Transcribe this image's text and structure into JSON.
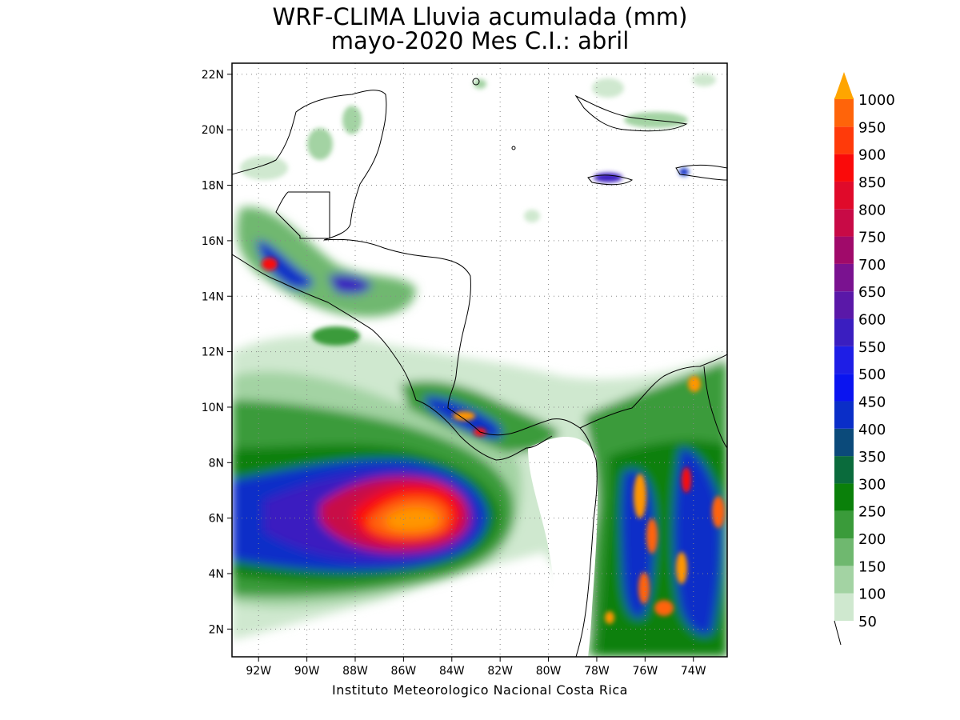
{
  "header": {
    "title_line1": "WRF-CLIMA Lluvia acumulada (mm)",
    "title_line2": "mayo-2020 Mes C.I.: abril"
  },
  "footer": {
    "credit": "Instituto Meteorologico Nacional Costa Rica"
  },
  "map": {
    "lon_range": [
      -93.1,
      -72.6
    ],
    "lat_range": [
      1.0,
      22.4
    ],
    "lon_ticks": [
      {
        "value": -92,
        "label": "92W"
      },
      {
        "value": -90,
        "label": "90W"
      },
      {
        "value": -88,
        "label": "88W"
      },
      {
        "value": -86,
        "label": "86W"
      },
      {
        "value": -84,
        "label": "84W"
      },
      {
        "value": -82,
        "label": "82W"
      },
      {
        "value": -80,
        "label": "80W"
      },
      {
        "value": -78,
        "label": "78W"
      },
      {
        "value": -76,
        "label": "76W"
      },
      {
        "value": -74,
        "label": "74W"
      }
    ],
    "lat_ticks": [
      {
        "value": 2,
        "label": "2N"
      },
      {
        "value": 4,
        "label": "4N"
      },
      {
        "value": 6,
        "label": "6N"
      },
      {
        "value": 8,
        "label": "8N"
      },
      {
        "value": 10,
        "label": "10N"
      },
      {
        "value": 12,
        "label": "12N"
      },
      {
        "value": 14,
        "label": "14N"
      },
      {
        "value": 16,
        "label": "16N"
      },
      {
        "value": 18,
        "label": "18N"
      },
      {
        "value": 20,
        "label": "20N"
      },
      {
        "value": 22,
        "label": "22N"
      }
    ],
    "gridlines": "dotted"
  },
  "legend": {
    "levels": [
      {
        "value": 50,
        "label": "50",
        "color": "#cfe8cf"
      },
      {
        "value": 100,
        "label": "100",
        "color": "#a3d3a3"
      },
      {
        "value": 150,
        "label": "150",
        "color": "#6fb86f"
      },
      {
        "value": 200,
        "label": "200",
        "color": "#3a9b3a"
      },
      {
        "value": 250,
        "label": "250",
        "color": "#0a800a"
      },
      {
        "value": 300,
        "label": "300",
        "color": "#0a6b3c"
      },
      {
        "value": 350,
        "label": "350",
        "color": "#0b4a7a"
      },
      {
        "value": 400,
        "label": "400",
        "color": "#0a2ec8"
      },
      {
        "value": 450,
        "label": "450",
        "color": "#0a14f0"
      },
      {
        "value": 500,
        "label": "500",
        "color": "#1e1ee6"
      },
      {
        "value": 550,
        "label": "550",
        "color": "#3a1ec0"
      },
      {
        "value": 600,
        "label": "600",
        "color": "#5a18a8"
      },
      {
        "value": 650,
        "label": "650",
        "color": "#7a1290"
      },
      {
        "value": 700,
        "label": "700",
        "color": "#a00a6a"
      },
      {
        "value": 750,
        "label": "750",
        "color": "#c80a46"
      },
      {
        "value": 800,
        "label": "800",
        "color": "#e00a2a"
      },
      {
        "value": 850,
        "label": "850",
        "color": "#fa0a0a"
      },
      {
        "value": 900,
        "label": "900",
        "color": "#ff3a0a"
      },
      {
        "value": 950,
        "label": "950",
        "color": "#ff640a"
      },
      {
        "value": 1000,
        "label": "1000",
        "color": "#ff9600"
      }
    ],
    "overflow_color": "#ffa500"
  }
}
